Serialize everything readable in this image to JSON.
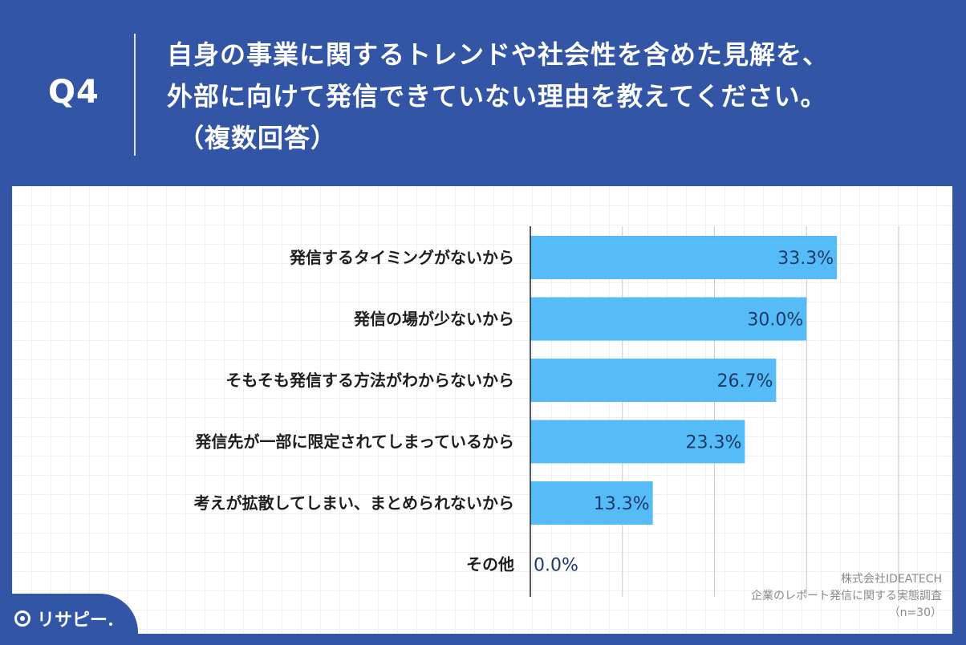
{
  "header": {
    "q_label": "Q4",
    "question_line1": "自身の事業に関するトレンドや社会性を含めた見解を、",
    "question_line2": "外部に向けて発信できていない理由を教えてください。",
    "question_line3": "（複数回答）"
  },
  "colors": {
    "header_bg": "#3355a6",
    "bar": "#55bcf8",
    "value_text": "#1f3a66"
  },
  "chart_data": {
    "type": "bar",
    "orientation": "horizontal",
    "categories": [
      "発信するタイミングがないから",
      "発信の場が少ないから",
      "そもそも発信する方法がわからないから",
      "発信先が一部に限定されてしまっているから",
      "考えが拡散してしまい、まとめられないから",
      "その他"
    ],
    "values": [
      33.3,
      30.0,
      26.7,
      23.3,
      13.3,
      0.0
    ],
    "value_labels": [
      "33.3%",
      "30.0%",
      "26.7%",
      "23.3%",
      "13.3%",
      "0.0%"
    ],
    "xlim": [
      0,
      40
    ],
    "grid": true
  },
  "source": {
    "line1": "株式会社IDEATECH",
    "line2": "企業のレポート発信に関する実態調査",
    "line3": "（n=30）"
  },
  "logo": {
    "text": "リサピー"
  }
}
